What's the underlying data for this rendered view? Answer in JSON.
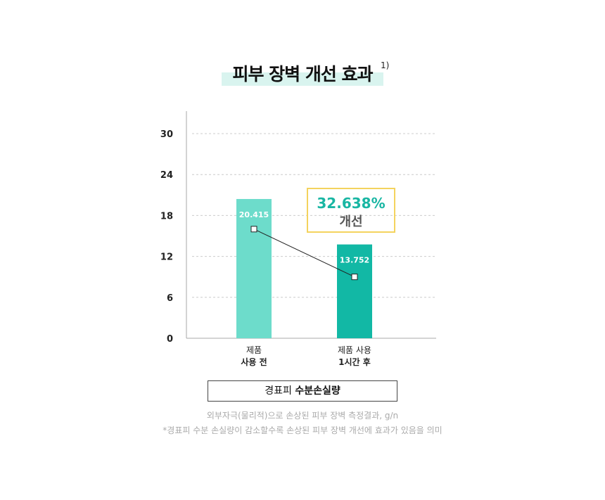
{
  "title": "피부 장벽 개선 효과",
  "footnote_mark": "1)",
  "improvement": {
    "percent": "32.638%",
    "label": "개선"
  },
  "legend": {
    "prefix": "경표피",
    "main": "수분손실량"
  },
  "notes": [
    "외부자극(물리적)으로 손상된 피부 장벽 측정결과, g/n",
    "*경표피 수분 손실량이 감소할수록 손상된 피부 장벽 개선에 효과가 있음을 의미"
  ],
  "chart_data": {
    "type": "bar",
    "categories": [
      {
        "line1": "제품",
        "line2": "사용 전"
      },
      {
        "line1": "제품 사용",
        "line2": "1시간 후"
      }
    ],
    "values": [
      20.415,
      13.752
    ],
    "value_labels": [
      "20.415",
      "13.752"
    ],
    "marker_line": [
      16,
      9
    ],
    "ylim": [
      0,
      30
    ],
    "yticks": [
      0,
      6,
      12,
      18,
      24,
      30
    ],
    "colors": [
      "#6ddccb",
      "#12b8a5"
    ],
    "grid": true
  }
}
